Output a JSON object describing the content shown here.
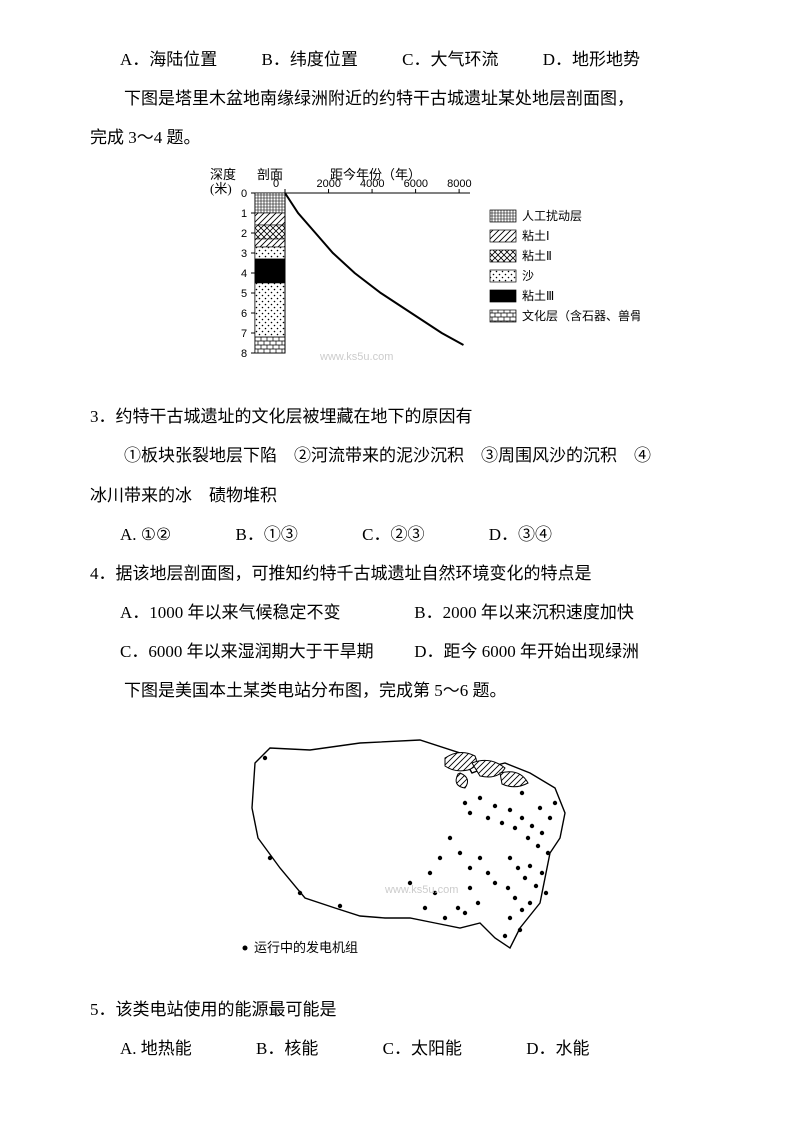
{
  "q_prev_options": {
    "a": "A．海陆位置",
    "b": "B．纬度位置",
    "c": "C．大气环流",
    "d": "D．地形地势"
  },
  "intro34_l1": "　　下图是塔里木盆地南缘绿洲附近的约特干古城遗址某处地层剖面图，",
  "intro34_l2": "完成 3～4 题。",
  "fig1": {
    "y_label": "深度",
    "y_unit": "(米)",
    "x_label_top_l": "剖面",
    "x_label_top_r": "距今年份（年）",
    "x_ticks": [
      "0",
      "2000",
      "4000",
      "6000",
      "8000"
    ],
    "y_ticks": [
      "0",
      "1",
      "2",
      "3",
      "4",
      "5",
      "6",
      "7",
      "8"
    ],
    "legend": [
      {
        "name": "人工扰动层",
        "pat": "grid"
      },
      {
        "name": "粘土Ⅰ",
        "pat": "diag"
      },
      {
        "name": "粘土Ⅱ",
        "pat": "cross"
      },
      {
        "name": "沙",
        "pat": "dots"
      },
      {
        "name": "粘土Ⅲ",
        "pat": "solid"
      },
      {
        "name": "文化层（含石器、兽骨）",
        "pat": "brick"
      }
    ],
    "strata": [
      {
        "from": 0,
        "to": 1,
        "pat": "grid"
      },
      {
        "from": 1,
        "to": 1.6,
        "pat": "diag"
      },
      {
        "from": 1.6,
        "to": 2.3,
        "pat": "cross"
      },
      {
        "from": 2.3,
        "to": 2.7,
        "pat": "diag"
      },
      {
        "from": 2.7,
        "to": 3.3,
        "pat": "dots"
      },
      {
        "from": 3.3,
        "to": 4.5,
        "pat": "solid"
      },
      {
        "from": 4.5,
        "to": 7.2,
        "pat": "dots"
      },
      {
        "from": 7.2,
        "to": 8,
        "pat": "brick"
      }
    ],
    "curve_pts": [
      [
        0,
        0
      ],
      [
        600,
        1
      ],
      [
        1400,
        2
      ],
      [
        2200,
        3
      ],
      [
        3200,
        4
      ],
      [
        4400,
        5
      ],
      [
        5800,
        6
      ],
      [
        7200,
        7
      ],
      [
        8200,
        7.6
      ]
    ],
    "watermark": "www.ks5u.com"
  },
  "q3": {
    "stem": "3．约特干古城遗址的文化层被埋藏在地下的原因有",
    "items_l1": "　　①板块张裂地层下陷　②河流带来的泥沙沉积　③周围风沙的沉积　④",
    "items_l2": "冰川带来的冰　碛物堆积",
    "opts": {
      "a": "A. ①②",
      "b": "B．①③",
      "c": "C．②③",
      "d": "D．③④"
    }
  },
  "q4": {
    "stem": "4．据该地层剖面图，可推知约特千古城遗址自然环境变化的特点是",
    "a": "A．1000 年以来气候稳定不变",
    "b": "B．2000 年以来沉积速度加快",
    "c": "C．6000 年以来湿润期大于干旱期",
    "d": "D．距今 6000 年开始出现绿洲"
  },
  "intro56": "　　下图是美国本土某类电站分布图，完成第 5～6 题。",
  "fig2": {
    "legend_dot": "运行中的发电机组",
    "watermark": "www.ks5u.com"
  },
  "q5": {
    "stem": "5．该类电站使用的能源最可能是",
    "opts": {
      "a": "A. 地热能",
      "b": "B．核能",
      "c": "C．太阳能",
      "d": "D．水能"
    }
  }
}
